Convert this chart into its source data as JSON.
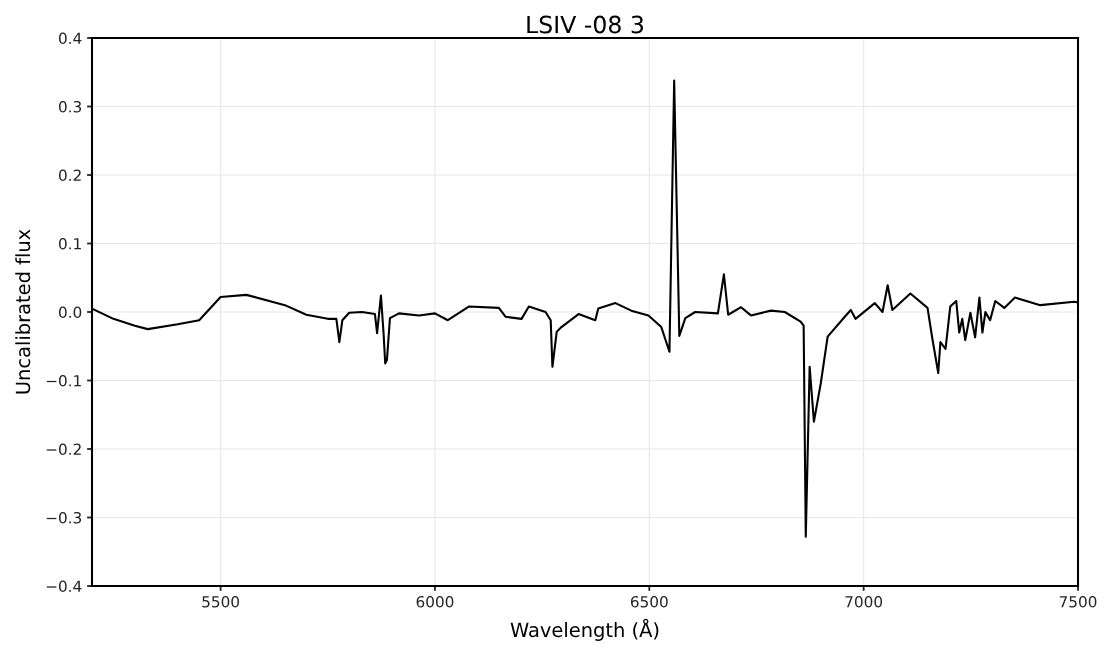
{
  "chart_data": {
    "type": "line",
    "title": "LSIV -08 3",
    "xlabel": "Wavelength (Å)",
    "ylabel": "Uncalibrated flux",
    "x": [
      5200,
      5250,
      5300,
      5330,
      5400,
      5450,
      5500,
      5560,
      5650,
      5700,
      5750,
      5770,
      5777,
      5784,
      5800,
      5830,
      5860,
      5865,
      5874,
      5880,
      5884,
      5888,
      5895,
      5916,
      5963,
      6000,
      6030,
      6079,
      6149,
      6165,
      6202,
      6219,
      6258,
      6270,
      6274,
      6284,
      6295,
      6335,
      6374,
      6381,
      6421,
      6458,
      6498,
      6528,
      6547,
      6558,
      6570,
      6584,
      6607,
      6660,
      6674,
      6684,
      6714,
      6737,
      6784,
      6816,
      6853,
      6860,
      6865,
      6874,
      6884,
      6900,
      6916,
      6956,
      6970,
      6981,
      7026,
      7044,
      7056,
      7067,
      7109,
      7149,
      7160,
      7174,
      7179,
      7191,
      7202,
      7216,
      7223,
      7230,
      7237,
      7249,
      7260,
      7270,
      7277,
      7284,
      7295,
      7307,
      7328,
      7353,
      7412,
      7491,
      7500
    ],
    "series": [
      {
        "color": "#000000",
        "values": [
          0.005,
          -0.01,
          -0.02,
          -0.025,
          -0.018,
          -0.012,
          0.022,
          0.025,
          0.01,
          -0.004,
          -0.01,
          -0.01,
          -0.044,
          -0.012,
          -0.001,
          0.0,
          -0.003,
          -0.031,
          0.024,
          -0.03,
          -0.075,
          -0.07,
          -0.009,
          -0.002,
          -0.005,
          -0.002,
          -0.012,
          0.008,
          0.006,
          -0.007,
          -0.01,
          0.008,
          0.0,
          -0.012,
          -0.08,
          -0.029,
          -0.022,
          -0.003,
          -0.012,
          0.005,
          0.013,
          0.002,
          -0.005,
          -0.022,
          -0.058,
          0.338,
          -0.035,
          -0.009,
          0.0,
          -0.002,
          0.055,
          -0.004,
          0.007,
          -0.005,
          0.002,
          0.0,
          -0.014,
          -0.02,
          -0.328,
          -0.08,
          -0.16,
          -0.104,
          -0.036,
          -0.007,
          0.003,
          -0.01,
          0.013,
          0.0,
          0.039,
          0.003,
          0.027,
          0.006,
          -0.038,
          -0.089,
          -0.044,
          -0.054,
          0.008,
          0.016,
          -0.03,
          -0.01,
          -0.041,
          -0.001,
          -0.037,
          0.021,
          -0.03,
          0.0,
          -0.012,
          0.016,
          0.006,
          0.021,
          0.01,
          0.015,
          0.014
        ]
      }
    ],
    "xlim": [
      5200,
      7500
    ],
    "xticks": [
      5500,
      6000,
      6500,
      7000,
      7500
    ],
    "ylim": [
      -0.4,
      0.4
    ],
    "yticks": [
      {
        "value": -0.4,
        "label": "−0.4"
      },
      {
        "value": -0.3,
        "label": "−0.3"
      },
      {
        "value": -0.2,
        "label": "−0.2"
      },
      {
        "value": -0.1,
        "label": "−0.1"
      },
      {
        "value": 0.0,
        "label": "0.0"
      },
      {
        "value": 0.1,
        "label": "0.1"
      },
      {
        "value": 0.2,
        "label": "0.2"
      },
      {
        "value": 0.3,
        "label": "0.3"
      },
      {
        "value": 0.4,
        "label": "0.4"
      }
    ],
    "grid": true,
    "legend": false,
    "marker": "none",
    "line_style": "solid"
  }
}
